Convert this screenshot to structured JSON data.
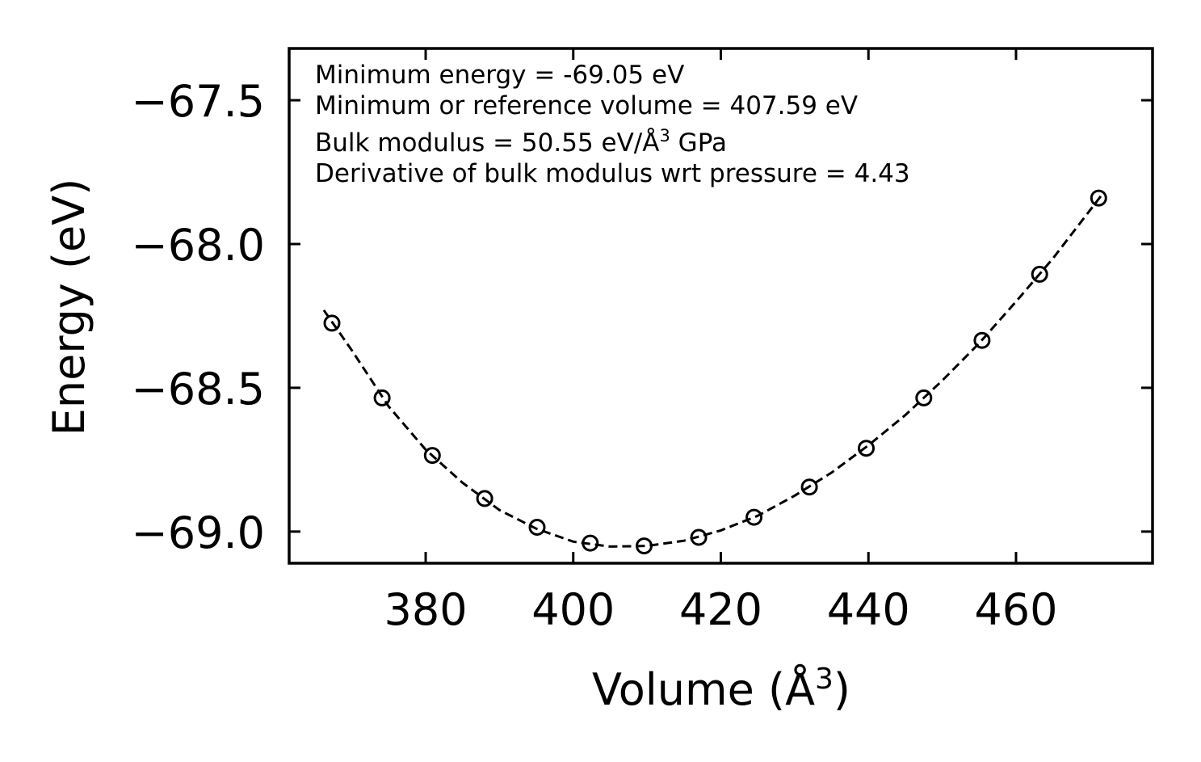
{
  "chart_data": {
    "type": "scatter",
    "title": "",
    "xlabel": "Volume (Å",
    "xlabel_sup": "3",
    "xlabel_tail": ")",
    "ylabel": "Energy (eV)",
    "xlim": [
      361.5,
      478.5
    ],
    "ylim": [
      -69.11,
      -67.32
    ],
    "xticks": [
      380,
      400,
      420,
      440,
      460
    ],
    "xtick_labels": [
      "380",
      "400",
      "420",
      "440",
      "460"
    ],
    "yticks": [
      -69.0,
      -68.5,
      -68.0,
      -67.5
    ],
    "ytick_labels": [
      "−69.0",
      "−68.5",
      "−68.0",
      "−67.5"
    ],
    "grid": false,
    "series": [
      {
        "name": "data",
        "style": "open-circle",
        "x": [
          367.3,
          374.1,
          380.9,
          388.0,
          395.1,
          402.3,
          409.6,
          417.0,
          424.5,
          432.0,
          439.7,
          447.5,
          455.4,
          463.2,
          471.2
        ],
        "y": [
          -68.275,
          -68.535,
          -68.735,
          -68.885,
          -68.985,
          -69.04,
          -69.05,
          -69.02,
          -68.95,
          -68.845,
          -68.71,
          -68.535,
          -68.335,
          -68.105,
          -67.84
        ]
      },
      {
        "name": "fit",
        "style": "dashed-line",
        "x": [
          366.2,
          370.0,
          375.0,
          380.0,
          385.0,
          390.0,
          395.0,
          400.0,
          405.0,
          410.0,
          415.0,
          420.0,
          425.0,
          430.0,
          435.0,
          440.0,
          445.0,
          450.0,
          455.0,
          460.0,
          465.0,
          471.9
        ],
        "y": [
          -68.23,
          -68.37,
          -68.565,
          -68.715,
          -68.83,
          -68.925,
          -68.99,
          -69.035,
          -69.052,
          -69.05,
          -69.032,
          -68.996,
          -68.945,
          -68.875,
          -68.795,
          -68.7,
          -68.595,
          -68.475,
          -68.345,
          -68.2,
          -68.05,
          -67.82
        ]
      }
    ],
    "annotations": [
      {
        "prefix": "Minimum energy = -69.05 eV"
      },
      {
        "prefix": "Minimum or reference volume = 407.59 eV"
      },
      {
        "prefix": "Bulk modulus = 50.55 eV/Å",
        "sup": "3",
        "suffix": " GPa"
      },
      {
        "prefix": "Derivative of bulk modulus wrt pressure = 4.43"
      }
    ],
    "colors": {
      "ink": "#000000",
      "background": "#ffffff"
    }
  }
}
